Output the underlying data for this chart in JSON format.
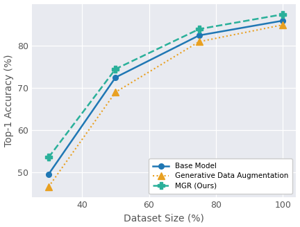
{
  "x": [
    30,
    50,
    75,
    100
  ],
  "base_model": [
    49.5,
    72.5,
    82.5,
    86.0
  ],
  "gen_aug": [
    46.5,
    69.0,
    81.0,
    85.0
  ],
  "mgr": [
    53.5,
    74.5,
    84.0,
    87.5
  ],
  "base_color": "#1f77b4",
  "gen_color": "#e8a020",
  "mgr_color": "#2ab09a",
  "xlabel": "Dataset Size (%)",
  "ylabel": "Top-1 Accuracy (%)",
  "xlim": [
    25,
    104
  ],
  "ylim": [
    44,
    90
  ],
  "yticks": [
    50,
    60,
    70,
    80
  ],
  "xticks": [
    40,
    60,
    80,
    100
  ],
  "legend_labels": [
    "Base Model",
    "Generative Data Augmentation",
    "MGR (Ours)"
  ],
  "axes_facecolor": "#e8eaf0",
  "fig_facecolor": "#ffffff"
}
